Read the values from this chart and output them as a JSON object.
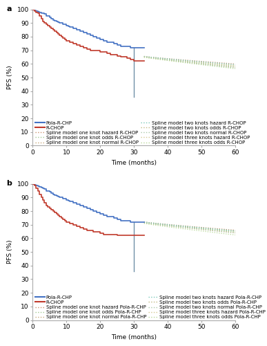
{
  "panel_a": {
    "title": "a",
    "pola_rchp_x": [
      0,
      0.5,
      1,
      1.5,
      2,
      2.5,
      3,
      3.5,
      4,
      5,
      5.5,
      6,
      6.5,
      7,
      7.5,
      8,
      9,
      10,
      10.5,
      11,
      12,
      13,
      14,
      15,
      16,
      17,
      18,
      19,
      20,
      21,
      22,
      23,
      24,
      25,
      26,
      27,
      28,
      29,
      30,
      30,
      33
    ],
    "pola_rchp_y": [
      100,
      99.5,
      99,
      98.5,
      98,
      97.5,
      97,
      96.5,
      95,
      94,
      93,
      92,
      91.5,
      91,
      90.5,
      90,
      89,
      88,
      87.5,
      87,
      86,
      85,
      84,
      83,
      82,
      81,
      80,
      79,
      78,
      77,
      76,
      76,
      75,
      74,
      73,
      73,
      73,
      72,
      72,
      72,
      72
    ],
    "rchop_x": [
      0,
      0.5,
      1,
      1.5,
      2,
      2.5,
      3,
      3.5,
      4,
      4.5,
      5,
      5.5,
      6,
      6.5,
      7,
      7.5,
      8,
      8.5,
      9,
      9.5,
      10,
      11,
      12,
      13,
      14,
      15,
      16,
      17,
      18,
      19,
      20,
      21,
      22,
      23,
      24,
      25,
      26,
      27,
      28,
      29,
      30,
      30,
      33
    ],
    "rchop_y": [
      100,
      99,
      98,
      97,
      95,
      93,
      91,
      90,
      89,
      88,
      87,
      86,
      85,
      84,
      83,
      82,
      81,
      80,
      79,
      78,
      77,
      76,
      75,
      74,
      73,
      72,
      71,
      70,
      70,
      70,
      69,
      69,
      68,
      67,
      67,
      66,
      65,
      65,
      64,
      63,
      62,
      62,
      62
    ],
    "pola_color": "#4472c4",
    "rchop_color": "#c0392b",
    "drop_x": 30,
    "drop_color": "#7090a8",
    "splines_a": {
      "starts": [
        65.5,
        65.0,
        65.5,
        65.5,
        65.0,
        65.5,
        65.5,
        65.0
      ],
      "ends": [
        60.0,
        57.5,
        59.0,
        58.5,
        58.0,
        59.5,
        57.0,
        56.5
      ],
      "colors": [
        "#c8906a",
        "#c8a878",
        "#c0b880",
        "#d4c890",
        "#a0c890",
        "#78c8b8",
        "#a8c8a8",
        "#b8d898"
      ]
    },
    "legend_left": [
      {
        "label": "Pola-R-CHP",
        "color": "#4472c4",
        "ls": "solid",
        "lw": 1.5
      },
      {
        "label": "Spline model one knot hazard R-CHOP",
        "color": "#c8906a",
        "ls": "dotted",
        "lw": 1.0
      },
      {
        "label": "Spline model one knot normal R-CHOP",
        "color": "#c8a878",
        "ls": "dotted",
        "lw": 1.0
      },
      {
        "label": "Spline model two knots odds R-CHOP",
        "color": "#c0b880",
        "ls": "dotted",
        "lw": 1.0
      },
      {
        "label": "Spline model three knots hazard R-CHOP",
        "color": "#d4c890",
        "ls": "dotted",
        "lw": 1.0
      }
    ],
    "legend_right": [
      {
        "label": "R-CHOP",
        "color": "#c0392b",
        "ls": "solid",
        "lw": 1.5
      },
      {
        "label": "Spline model one knot odds R-CHOP",
        "color": "#a0c890",
        "ls": "dotted",
        "lw": 1.0
      },
      {
        "label": "Spline model two knots hazard R-CHOP",
        "color": "#78c8b8",
        "ls": "dotted",
        "lw": 1.0
      },
      {
        "label": "Spline model two knots normal R-CHOP",
        "color": "#a8c8a8",
        "ls": "dotted",
        "lw": 1.0
      },
      {
        "label": "Spline model three knots odds R-CHOP",
        "color": "#b8d898",
        "ls": "dotted",
        "lw": 1.0
      }
    ]
  },
  "panel_b": {
    "title": "b",
    "pola_rchp_x": [
      0,
      0.5,
      1,
      1.5,
      2,
      2.5,
      3,
      3.5,
      4,
      5,
      5.5,
      6,
      6.5,
      7,
      7.5,
      8,
      9,
      10,
      10.5,
      11,
      12,
      13,
      14,
      15,
      16,
      17,
      18,
      19,
      20,
      21,
      22,
      23,
      24,
      25,
      26,
      27,
      28,
      29,
      30,
      30,
      33
    ],
    "pola_rchp_y": [
      100,
      99.5,
      99,
      98.5,
      98,
      97.5,
      97,
      96.5,
      95,
      94,
      93,
      92,
      91.5,
      91,
      90.5,
      90,
      89,
      88,
      87.5,
      87,
      86,
      85,
      84,
      83,
      82,
      81,
      80,
      79,
      78,
      77,
      76,
      76,
      75,
      74,
      73,
      73,
      73,
      72,
      72,
      72,
      72
    ],
    "rchop_x": [
      0,
      0.5,
      1,
      1.5,
      2,
      2.5,
      3,
      3.5,
      4,
      4.5,
      5,
      5.5,
      6,
      6.5,
      7,
      7.5,
      8,
      8.5,
      9,
      9.5,
      10,
      11,
      12,
      13,
      14,
      15,
      16,
      17,
      18,
      19,
      20,
      21,
      22,
      23,
      24,
      25,
      26,
      27,
      28,
      29,
      30,
      30,
      33
    ],
    "rchop_y": [
      100,
      99,
      97,
      95,
      92,
      90,
      88,
      86,
      84,
      83,
      82,
      81,
      80,
      79,
      78,
      77,
      76,
      75,
      74,
      73,
      72,
      71,
      70,
      69,
      68,
      67,
      66,
      66,
      65,
      65,
      64,
      63,
      63,
      63,
      63,
      62.5,
      62,
      62,
      62,
      62,
      62,
      62,
      62
    ],
    "pola_color": "#4472c4",
    "rchop_color": "#c0392b",
    "drop_x": 30,
    "drop_color": "#7090a8",
    "splines_b": {
      "starts": [
        72.0,
        71.5,
        72.0,
        71.5,
        71.5,
        72.0,
        71.5,
        71.0
      ],
      "ends": [
        66.0,
        64.0,
        65.5,
        64.5,
        65.0,
        65.5,
        64.0,
        62.5
      ],
      "colors": [
        "#c8906a",
        "#c8a878",
        "#c0b880",
        "#d4c890",
        "#a0c890",
        "#78c8b8",
        "#a8c8a8",
        "#b8d898"
      ]
    },
    "legend_left": [
      {
        "label": "Pola-R-CHP",
        "color": "#4472c4",
        "ls": "solid",
        "lw": 1.5
      },
      {
        "label": "Spline model one knot hazard Pola-R-CHP",
        "color": "#c8906a",
        "ls": "dotted",
        "lw": 1.0
      },
      {
        "label": "Spline model one knot normal Pola-R-CHP",
        "color": "#c8a878",
        "ls": "dotted",
        "lw": 1.0
      },
      {
        "label": "Spline model two knots odds Pola-R-CHP",
        "color": "#c0b880",
        "ls": "dotted",
        "lw": 1.0
      },
      {
        "label": "Spline model three knots hazard Pola-R-CHP",
        "color": "#d4c890",
        "ls": "dotted",
        "lw": 1.0
      }
    ],
    "legend_right": [
      {
        "label": "R-CHOP",
        "color": "#c0392b",
        "ls": "solid",
        "lw": 1.5
      },
      {
        "label": "Spline model one knot odds Pola-R-CHP",
        "color": "#a0c890",
        "ls": "dotted",
        "lw": 1.0
      },
      {
        "label": "Spline model two knots hazard Pola-R-CHP",
        "color": "#78c8b8",
        "ls": "dotted",
        "lw": 1.0
      },
      {
        "label": "Spline model two knots normal Pola-R-CHP",
        "color": "#a8c8a8",
        "ls": "dotted",
        "lw": 1.0
      },
      {
        "label": "Spline model three knots odds Pola-R-CHP",
        "color": "#b8d898",
        "ls": "dotted",
        "lw": 1.0
      }
    ]
  },
  "ylim": [
    0,
    100
  ],
  "xlim": [
    0,
    60
  ],
  "yticks": [
    0,
    10,
    20,
    30,
    40,
    50,
    60,
    70,
    80,
    90,
    100
  ],
  "xticks": [
    0,
    10,
    20,
    30,
    40,
    50,
    60
  ],
  "ylabel": "PFS (%)",
  "xlabel": "Time (months)",
  "tick_fs": 6.5,
  "label_fs": 6.5,
  "legend_fs": 5.0
}
